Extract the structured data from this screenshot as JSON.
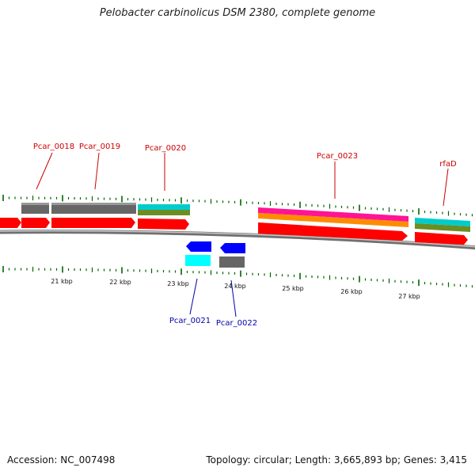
{
  "title": "Pelobacter carbinolicus DSM 2380, complete genome",
  "accession_line": "Accession: NC_007498",
  "summary_line": "Topology: circular; Length: 3,665,893 bp; Genes: 3,415",
  "colors": {
    "forward_label": "#cc0000",
    "reverse_label": "#0000aa",
    "gene_red": "#ff0000",
    "gene_blue": "#0000ff",
    "gene_cyan": "#00ffff",
    "gene_gray": "#666666",
    "track_cyan": "#00cccc",
    "track_olive": "#6b8e23",
    "track_magenta": "#ff1493",
    "track_orange": "#ff8c00",
    "ticks": "#006400",
    "backbone": "#888888"
  },
  "scale_labels": [
    "21 kbp",
    "22 kbp",
    "23 kbp",
    "24 kbp",
    "25 kbp",
    "26 kbp",
    "27 kbp"
  ],
  "forward_genes": [
    {
      "name": "Pcar_0018"
    },
    {
      "name": "Pcar_0019"
    },
    {
      "name": "Pcar_0020"
    },
    {
      "name": "Pcar_0023"
    },
    {
      "name": "rfaD"
    }
  ],
  "reverse_genes": [
    {
      "name": "Pcar_0021"
    },
    {
      "name": "Pcar_0022"
    }
  ]
}
